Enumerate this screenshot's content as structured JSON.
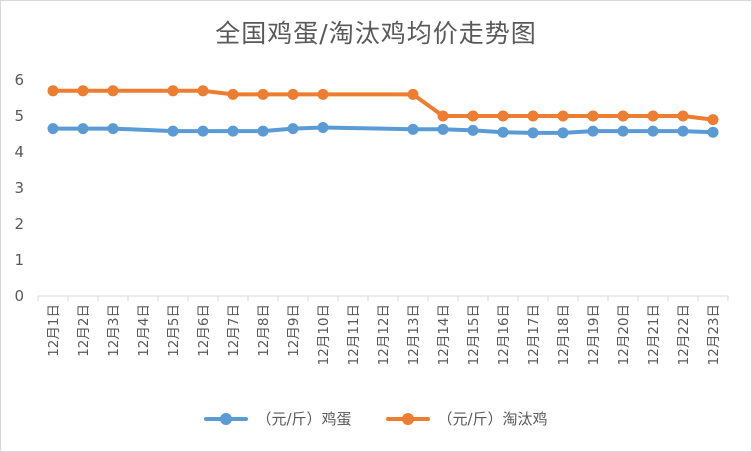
{
  "chart_data": {
    "type": "line",
    "title": "全国鸡蛋/淘汰鸡均价走势图",
    "xlabel": "",
    "ylabel": "",
    "ylim": [
      0,
      6
    ],
    "yticks": [
      "0",
      "1",
      "2",
      "3",
      "4",
      "5",
      "6"
    ],
    "grid": false,
    "legend_position": "bottom",
    "categories": [
      "12月1日",
      "12月2日",
      "12月3日",
      "12月4日",
      "12月5日",
      "12月6日",
      "12月7日",
      "12月8日",
      "12月9日",
      "12月10日",
      "12月11日",
      "12月12日",
      "12月13日",
      "12月14日",
      "12月15日",
      "12月16日",
      "12月17日",
      "12月18日",
      "12月19日",
      "12月20日",
      "12月21日",
      "12月22日",
      "12月23日"
    ],
    "series": [
      {
        "name": "（元/斤）鸡蛋",
        "color": "#5b9bd5",
        "values": [
          4.65,
          4.65,
          4.65,
          null,
          4.58,
          4.58,
          4.58,
          4.58,
          4.65,
          4.68,
          null,
          null,
          4.63,
          4.63,
          4.6,
          4.55,
          4.53,
          4.53,
          4.58,
          4.58,
          4.58,
          4.58,
          4.55
        ]
      },
      {
        "name": "（元/斤）淘汰鸡",
        "color": "#ed7d31",
        "values": [
          5.7,
          5.7,
          5.7,
          null,
          5.7,
          5.7,
          5.6,
          5.6,
          5.6,
          5.6,
          null,
          null,
          5.6,
          5.0,
          5.0,
          5.0,
          5.0,
          5.0,
          5.0,
          5.0,
          5.0,
          5.0,
          4.9
        ]
      }
    ]
  }
}
